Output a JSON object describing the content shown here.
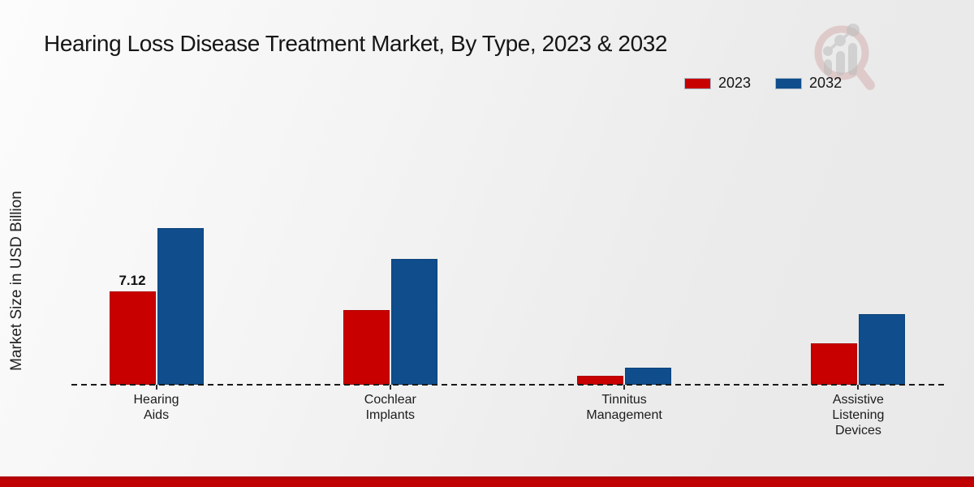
{
  "header": {
    "title": "Hearing Loss Disease Treatment Market, By Type, 2023 & 2032"
  },
  "chart_data": {
    "type": "bar",
    "title": "Hearing Loss Disease Treatment Market, By Type, 2023 & 2032",
    "xlabel": "",
    "ylabel": "Market Size in USD Billion",
    "categories": [
      "Hearing Aids",
      "Cochlear Implants",
      "Tinnitus Management",
      "Assistive Listening Devices"
    ],
    "category_label_lines": [
      [
        "Hearing",
        "Aids"
      ],
      [
        "Cochlear",
        "Implants"
      ],
      [
        "Tinnitus",
        "Management"
      ],
      [
        "Assistive",
        "Listening",
        "Devices"
      ]
    ],
    "series": [
      {
        "name": "2023",
        "color": "#c80000",
        "values": [
          7.12,
          5.7,
          0.68,
          3.16
        ]
      },
      {
        "name": "2032",
        "color": "#0f4d8c",
        "values": [
          11.95,
          9.6,
          1.3,
          5.39
        ]
      }
    ],
    "value_labels": [
      {
        "series": "2023",
        "category": "Hearing Aids",
        "text": "7.12"
      }
    ],
    "ylim": [
      0,
      12.5
    ],
    "grid": false,
    "legend_position": "top-right",
    "baseline_style": "dashed",
    "unit": "USD Billion"
  },
  "branding": {
    "logo": "magnifier-bar-chart-logo",
    "logo_ring_color": "#cf9d9d",
    "logo_bar_color": "#bcbcbc"
  },
  "footer": {
    "accent_color": "#bf0101"
  }
}
